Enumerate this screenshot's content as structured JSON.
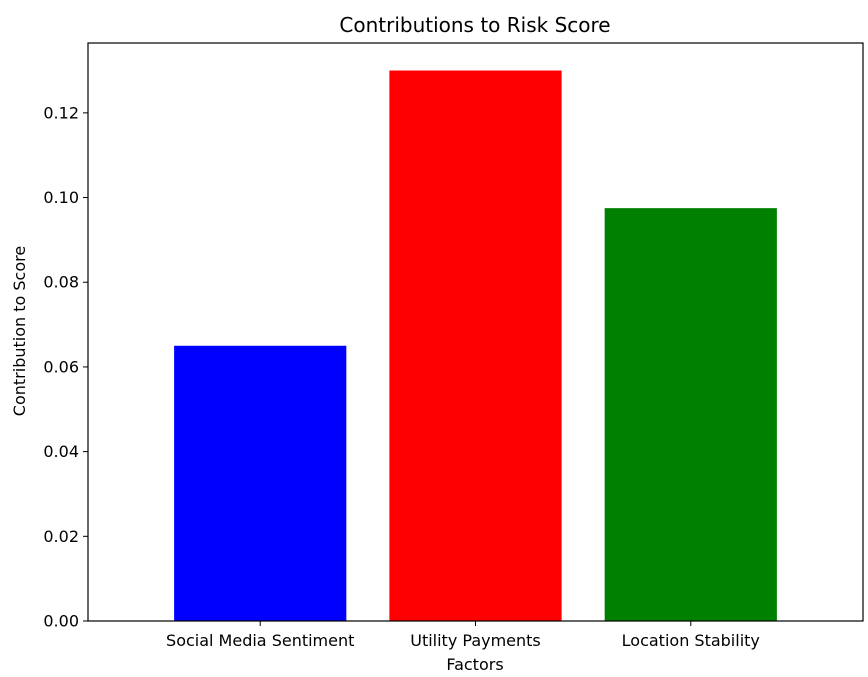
{
  "chart_data": {
    "type": "bar",
    "title": "Contributions to Risk Score",
    "xlabel": "Factors",
    "ylabel": "Contribution to Score",
    "categories": [
      "Social Media Sentiment",
      "Utility Payments",
      "Location Stability"
    ],
    "values": [
      0.065,
      0.13,
      0.0975
    ],
    "colors": [
      "#0000ff",
      "#ff0000",
      "#008000"
    ],
    "ylim": [
      0,
      0.1365
    ],
    "yticks": [
      0.0,
      0.02,
      0.04,
      0.06,
      0.08,
      0.1,
      0.12
    ],
    "ytick_labels": [
      "0.00",
      "0.02",
      "0.04",
      "0.06",
      "0.08",
      "0.10",
      "0.12"
    ],
    "grid": false,
    "legend": "none"
  }
}
